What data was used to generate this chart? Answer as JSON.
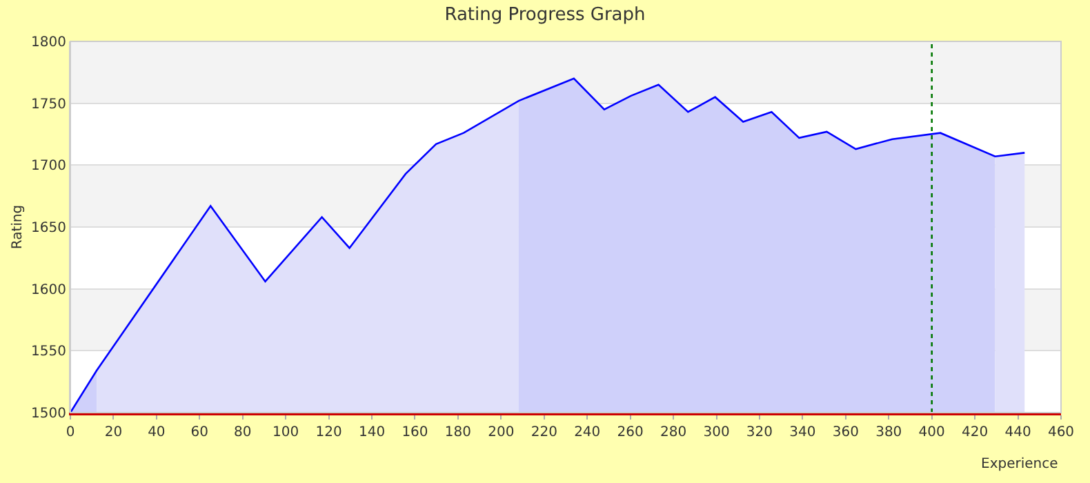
{
  "chart_data": {
    "type": "area",
    "title": "Rating Progress Graph",
    "xlabel": "Experience",
    "ylabel": "Rating",
    "series": [
      {
        "color": "#cfd0fa",
        "x": [
          0,
          12.2
        ],
        "values": [
          1500,
          1534
        ]
      },
      {
        "color": "#e0e0fa",
        "x": [
          12.2,
          65.1,
          90.5,
          116.8,
          129.6,
          155.7,
          169.8,
          182.6,
          208.2
        ],
        "values": [
          1534,
          1667,
          1606,
          1658,
          1633,
          1693,
          1717,
          1726,
          1752
        ]
      },
      {
        "color": "#cfd0fa",
        "x": [
          208.2,
          233.8,
          247.9,
          260.3,
          273.1,
          286.8,
          299.4,
          312.4,
          325.6,
          338.4,
          351.2,
          364.7,
          381.6,
          404,
          429.4
        ],
        "values": [
          1752,
          1770,
          1745,
          1756,
          1765,
          1743,
          1755,
          1735,
          1743,
          1722,
          1727,
          1713,
          1721,
          1726,
          1707
        ]
      },
      {
        "color": "#e0e0fa",
        "x": [
          429.4,
          443.1
        ],
        "values": [
          1707,
          1710
        ]
      },
      {
        "type": "line",
        "color": "#0000ff",
        "x": [
          0,
          12.2,
          65.1,
          90.5,
          116.8,
          129.6,
          155.7,
          169.8,
          182.6,
          208.2,
          233.8,
          247.9,
          260.3,
          273.1,
          286.8,
          299.4,
          312.4,
          325.6,
          338.4,
          351.2,
          364.7,
          381.6,
          404,
          429.4,
          443.1
        ],
        "values": [
          1500,
          1534,
          1667,
          1606,
          1658,
          1633,
          1693,
          1717,
          1726,
          1752,
          1770,
          1745,
          1756,
          1765,
          1743,
          1755,
          1735,
          1743,
          1722,
          1727,
          1713,
          1721,
          1726,
          1707,
          1710
        ]
      }
    ],
    "xlim": [
      0,
      460
    ],
    "xticks": [
      0,
      20,
      40,
      60,
      80,
      100,
      120,
      140,
      160,
      180,
      200,
      220,
      240,
      260,
      280,
      300,
      320,
      340,
      360,
      380,
      400,
      420,
      440,
      460
    ],
    "ylim": [
      1500,
      1800
    ],
    "yticks": [
      1500,
      1550,
      1600,
      1650,
      1700,
      1750,
      1800
    ],
    "grid": "y",
    "bands": [
      {
        "axis": "y",
        "from": 1550,
        "to": 1600,
        "color": "#f3f3f3"
      },
      {
        "axis": "y",
        "from": 1650,
        "to": 1700,
        "color": "#f3f3f3"
      },
      {
        "axis": "y",
        "from": 1750,
        "to": 1800,
        "color": "#f3f3f3"
      }
    ],
    "ref_lines": [
      {
        "axis": "x",
        "value": 400,
        "color": "#007700",
        "line_style": "dotted"
      }
    ]
  }
}
